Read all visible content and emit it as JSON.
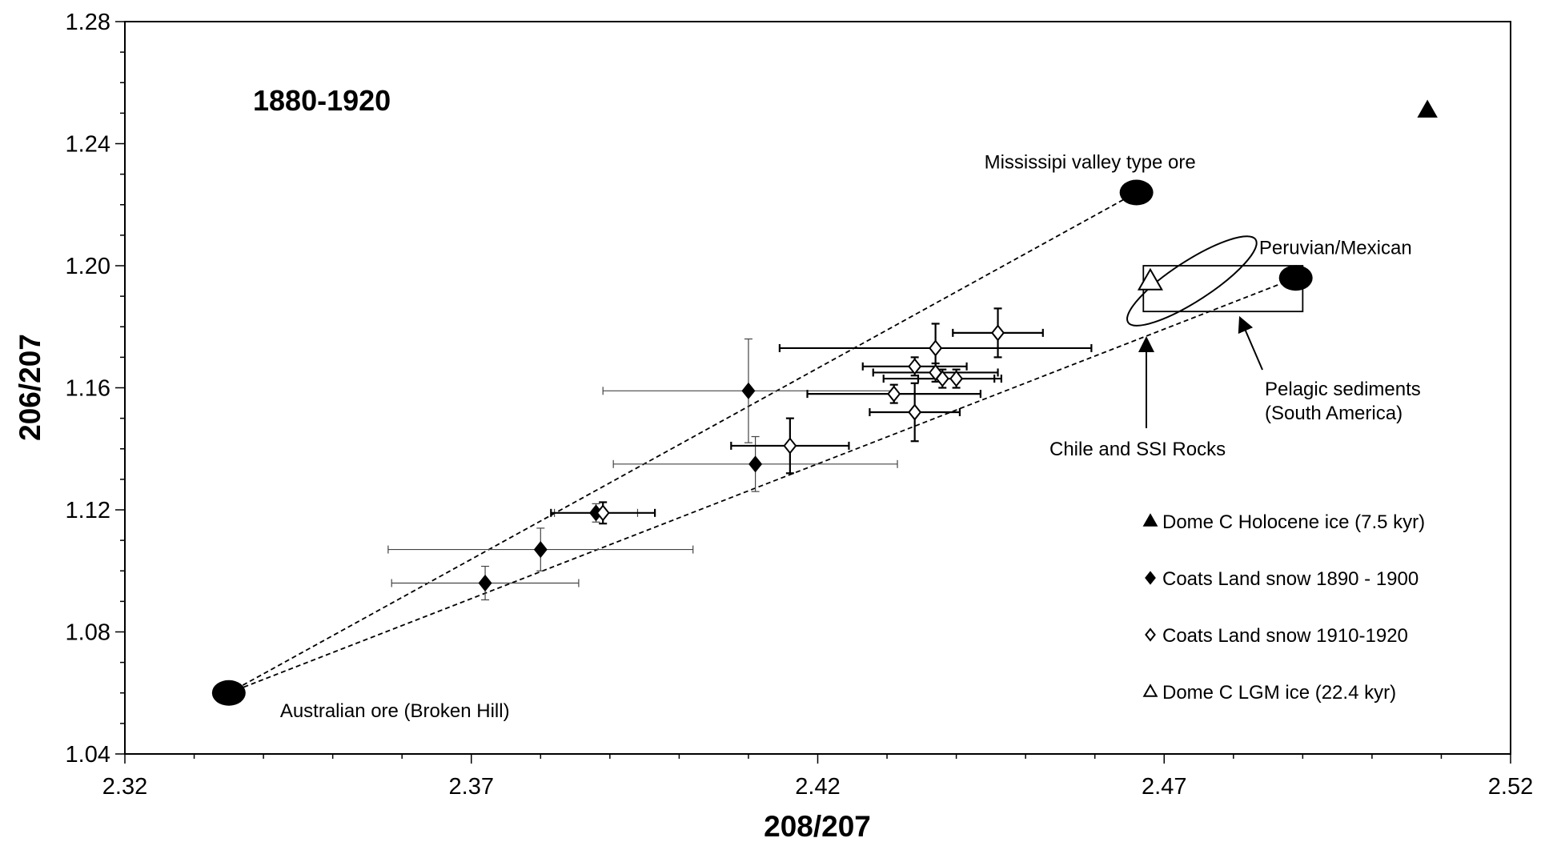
{
  "chart_data": {
    "type": "scatter",
    "title": "",
    "period_label": "1880-1920",
    "xlabel": "208/207",
    "ylabel": "206/207",
    "xlim": [
      2.32,
      2.52
    ],
    "ylim": [
      1.04,
      1.28
    ],
    "x_ticks": [
      "2.32",
      "2.37",
      "2.42",
      "2.47",
      "2.52"
    ],
    "y_ticks": [
      "1.04",
      "1.08",
      "1.12",
      "1.16",
      "1.20",
      "1.24",
      "1.28"
    ],
    "grid": false,
    "series": [
      {
        "name": "Dome C Holocene ice (7.5 kyr)",
        "marker": "filled-triangle",
        "points": [
          {
            "x": 2.508,
            "y": 1.251
          }
        ]
      },
      {
        "name": "Coats Land snow 1890 - 1900",
        "marker": "filled-diamond",
        "points": [
          {
            "x": 2.372,
            "y": 1.096,
            "xerr": 0.0135,
            "yerr": 0.0055
          },
          {
            "x": 2.38,
            "y": 1.107,
            "xerr": 0.022,
            "yerr": 0.007
          },
          {
            "x": 2.388,
            "y": 1.119,
            "xerr": 0.006,
            "yerr": 0.003
          },
          {
            "x": 2.41,
            "y": 1.159,
            "xerr": 0.021,
            "yerr": 0.017
          },
          {
            "x": 2.411,
            "y": 1.135,
            "xerr": 0.0205,
            "yerr": 0.009
          }
        ]
      },
      {
        "name": "Coats Land snow 1910-1920",
        "marker": "open-diamond",
        "points": [
          {
            "x": 2.389,
            "y": 1.119,
            "xerr": 0.0075,
            "yerr": 0.0035
          },
          {
            "x": 2.416,
            "y": 1.141,
            "xerr": 0.0085,
            "yerr": 0.009
          },
          {
            "x": 2.431,
            "y": 1.158,
            "xerr": 0.0125,
            "yerr": 0.003
          },
          {
            "x": 2.434,
            "y": 1.152,
            "xerr": 0.0065,
            "yerr": 0.0095
          },
          {
            "x": 2.434,
            "y": 1.167,
            "xerr": 0.0075,
            "yerr": 0.003
          },
          {
            "x": 2.437,
            "y": 1.165,
            "xerr": 0.009,
            "yerr": 0.003
          },
          {
            "x": 2.437,
            "y": 1.173,
            "xerr": 0.0225,
            "yerr": 0.008
          },
          {
            "x": 2.438,
            "y": 1.163,
            "xerr": 0.0085,
            "yerr": 0.003
          },
          {
            "x": 2.44,
            "y": 1.163,
            "xerr": 0.0055,
            "yerr": 0.003
          },
          {
            "x": 2.446,
            "y": 1.178,
            "xerr": 0.0065,
            "yerr": 0.008
          }
        ]
      },
      {
        "name": "Dome C LGM ice (22.4 kyr)",
        "marker": "open-triangle",
        "points": [
          {
            "x": 2.468,
            "y": 1.195
          }
        ]
      }
    ],
    "sources": [
      {
        "label": "Australian ore (Broken Hill)",
        "x": 2.335,
        "y": 1.06
      },
      {
        "label": "Mississipi valley type ore",
        "x": 2.466,
        "y": 1.224
      },
      {
        "label": "Peruvian/Mexican",
        "x": 2.489,
        "y": 1.196
      }
    ],
    "mixing_lines": [
      {
        "from": [
          2.335,
          1.06
        ],
        "to": [
          2.466,
          1.224
        ]
      },
      {
        "from": [
          2.335,
          1.06
        ],
        "to": [
          2.489,
          1.196
        ]
      }
    ],
    "regions": [
      {
        "label": "Chile and SSI Rocks",
        "shape": "ellipse",
        "x_range": [
          2.464,
          2.484
        ],
        "y_range": [
          1.184,
          1.206
        ]
      },
      {
        "label_lines": [
          "Pelagic sediments",
          "(South America)"
        ],
        "shape": "rectangle",
        "x_range": [
          2.467,
          2.49
        ],
        "y_range": [
          1.185,
          1.2
        ]
      }
    ],
    "legend_position": "bottom-right"
  }
}
